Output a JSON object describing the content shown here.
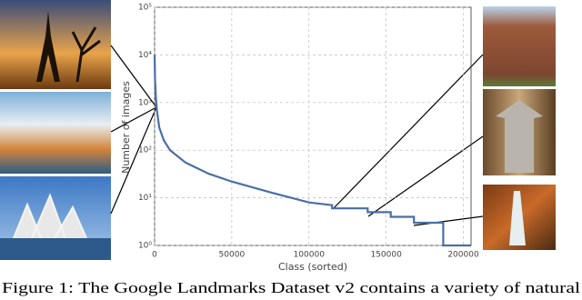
{
  "chart_data": {
    "type": "line",
    "xlabel": "Class (sorted)",
    "ylabel": "Number of images",
    "x": [
      0,
      300,
      800,
      1500,
      3000,
      6000,
      10000,
      20000,
      35000,
      50000,
      75000,
      100000,
      115000,
      115000,
      138000,
      138000,
      153000,
      153000,
      168000,
      168000,
      187000,
      187000,
      205000
    ],
    "values": [
      10000,
      3000,
      1300,
      700,
      300,
      160,
      100,
      55,
      32,
      22,
      13,
      8,
      7,
      6,
      6,
      5,
      5,
      4,
      4,
      3,
      3,
      1,
      1
    ],
    "color": "#4a6fa5",
    "xlim": [
      0,
      205000
    ],
    "xticks": [
      0,
      50000,
      100000,
      150000,
      200000
    ],
    "ylim": [
      1,
      100000
    ],
    "ylog": true,
    "yticks": [
      {
        "value": 1,
        "label": "10⁰"
      },
      {
        "value": 10,
        "label": "10¹"
      },
      {
        "value": 100,
        "label": "10²"
      },
      {
        "value": 1000,
        "label": "10³"
      },
      {
        "value": 10000,
        "label": "10⁴"
      },
      {
        "value": 100000,
        "label": "10⁵"
      }
    ],
    "grid": true
  },
  "caption": "Figure 1: The Google Landmarks Dataset v2 contains a variety of natural"
}
